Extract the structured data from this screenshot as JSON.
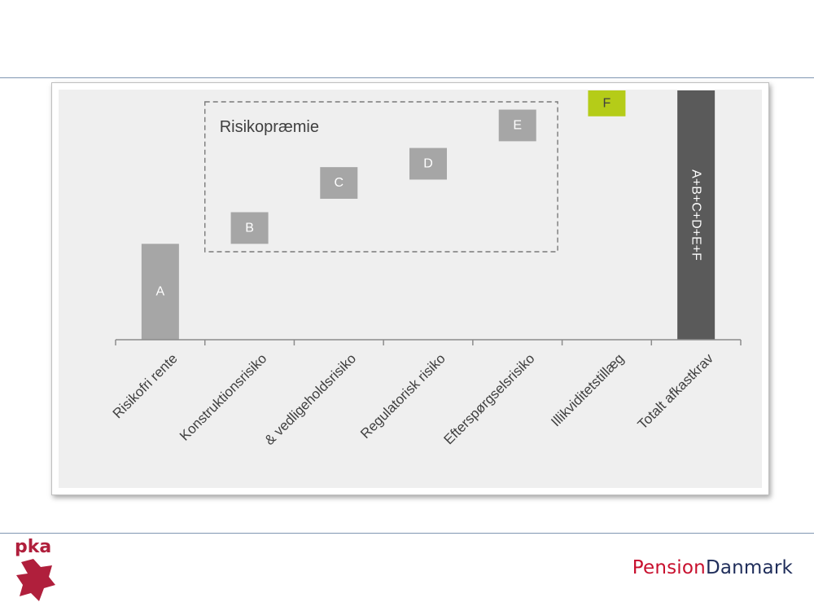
{
  "chart_data": {
    "type": "bar",
    "subtype": "waterfall",
    "categories": [
      "Risikofri rente",
      "Konstruktionsrisiko",
      "& vedligeholdsrisiko",
      "Regulatorisk risiko",
      "Efterspørgselsrisiko",
      "Illikviditetstillæg",
      "Totalt afkastkrav"
    ],
    "bars": [
      {
        "label": "A",
        "start": 0,
        "end": 1.0,
        "color": "#a6a6a6",
        "text_color": "#ffffff"
      },
      {
        "label": "B",
        "start": 1.0,
        "end": 1.33,
        "color": "#a6a6a6",
        "text_color": "#ffffff"
      },
      {
        "label": "C",
        "start": 1.47,
        "end": 1.8,
        "color": "#a6a6a6",
        "text_color": "#ffffff"
      },
      {
        "label": "D",
        "start": 1.67,
        "end": 2.0,
        "color": "#a6a6a6",
        "text_color": "#ffffff"
      },
      {
        "label": "E",
        "start": 2.07,
        "end": 2.4,
        "color": "#a6a6a6",
        "text_color": "#ffffff"
      },
      {
        "label": "F",
        "start": 2.33,
        "end": 2.6,
        "color": "#b5cc18",
        "text_color": "#404040"
      },
      {
        "label": "A+B+C+D+E+F",
        "start": 0,
        "end": 2.6,
        "color": "#5a5a5a",
        "text_color": "#ffffff",
        "vertical_label": true
      }
    ],
    "ylim": [
      0,
      2.6
    ],
    "grid": false,
    "annotation": {
      "text": "Risikopræmie",
      "style": "dashed-box",
      "covers_categories": [
        1,
        4
      ]
    },
    "plot_background": "#efefef",
    "axis_color": "#8c8c8c"
  },
  "logos": {
    "pka": {
      "text": "pka",
      "color": "#b01f3c"
    },
    "pensiondanmark": {
      "part1": "Pension",
      "part2": "Danmark",
      "color1": "#c8102e",
      "color2": "#1f2d5a"
    }
  }
}
